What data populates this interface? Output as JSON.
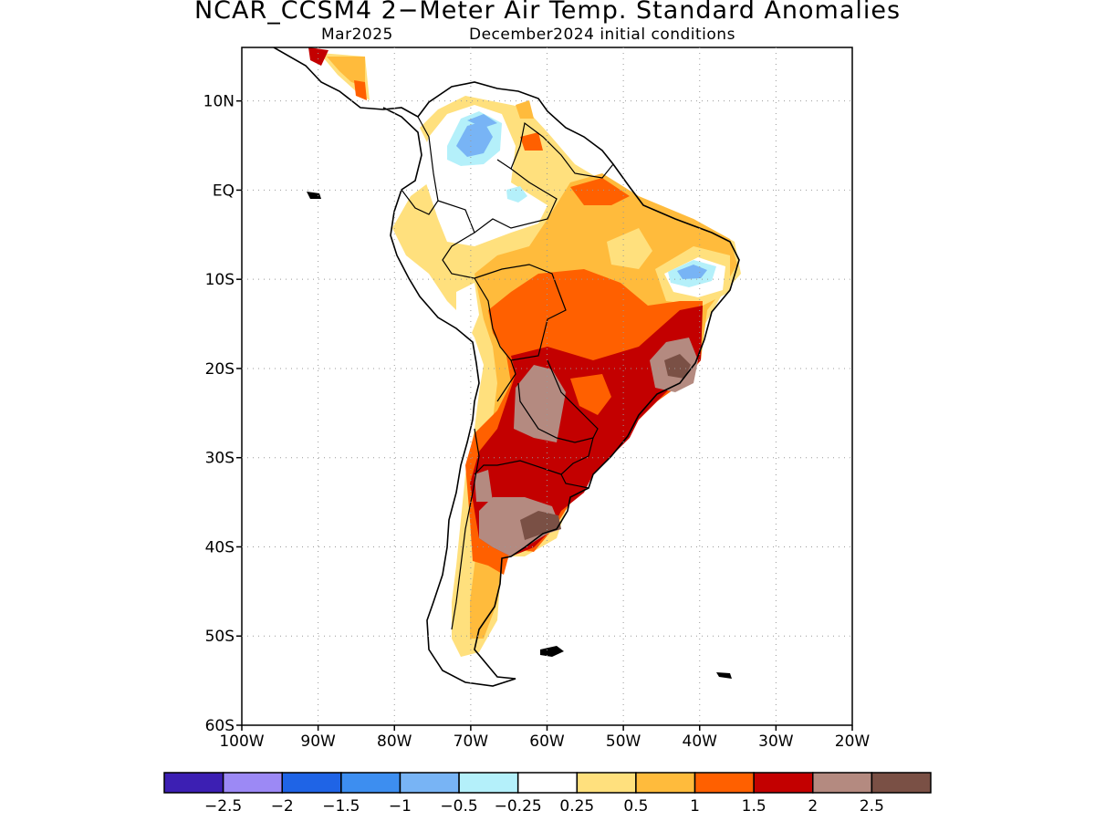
{
  "title": "NCAR_CCSM4 2−Meter Air Temp. Standard Anomalies",
  "subtitle_left": "Mar2025",
  "subtitle_right": "December2024 initial conditions",
  "map": {
    "lon_range": [
      -100,
      -20
    ],
    "lat_range": [
      -60,
      16
    ],
    "lat_ticks": [
      {
        "value": 10,
        "label": "10N"
      },
      {
        "value": 0,
        "label": "EQ"
      },
      {
        "value": -10,
        "label": "10S"
      },
      {
        "value": -20,
        "label": "20S"
      },
      {
        "value": -30,
        "label": "30S"
      },
      {
        "value": -40,
        "label": "40S"
      },
      {
        "value": -50,
        "label": "50S"
      },
      {
        "value": -60,
        "label": "60S"
      }
    ],
    "lon_ticks": [
      {
        "value": -100,
        "label": "100W"
      },
      {
        "value": -90,
        "label": "90W"
      },
      {
        "value": -80,
        "label": "80W"
      },
      {
        "value": -70,
        "label": "70W"
      },
      {
        "value": -60,
        "label": "60W"
      },
      {
        "value": -50,
        "label": "50W"
      },
      {
        "value": -40,
        "label": "40W"
      },
      {
        "value": -30,
        "label": "30W"
      },
      {
        "value": -20,
        "label": "20W"
      }
    ],
    "grid": "dotted"
  },
  "colorbar": {
    "colors": [
      "#3c1fb3",
      "#9c89f5",
      "#1f64e6",
      "#3d8ef0",
      "#78b4f5",
      "#b4f0fa",
      "#ffffff",
      "#ffe07d",
      "#ffbb3c",
      "#ff6000",
      "#c30000",
      "#b48a80",
      "#7a5045"
    ],
    "labels": [
      "−2.5",
      "−2",
      "−1.5",
      "−1",
      "−0.5",
      "−0.25",
      "0.25",
      "0.5",
      "1",
      "1.5",
      "2",
      "2.5"
    ]
  }
}
